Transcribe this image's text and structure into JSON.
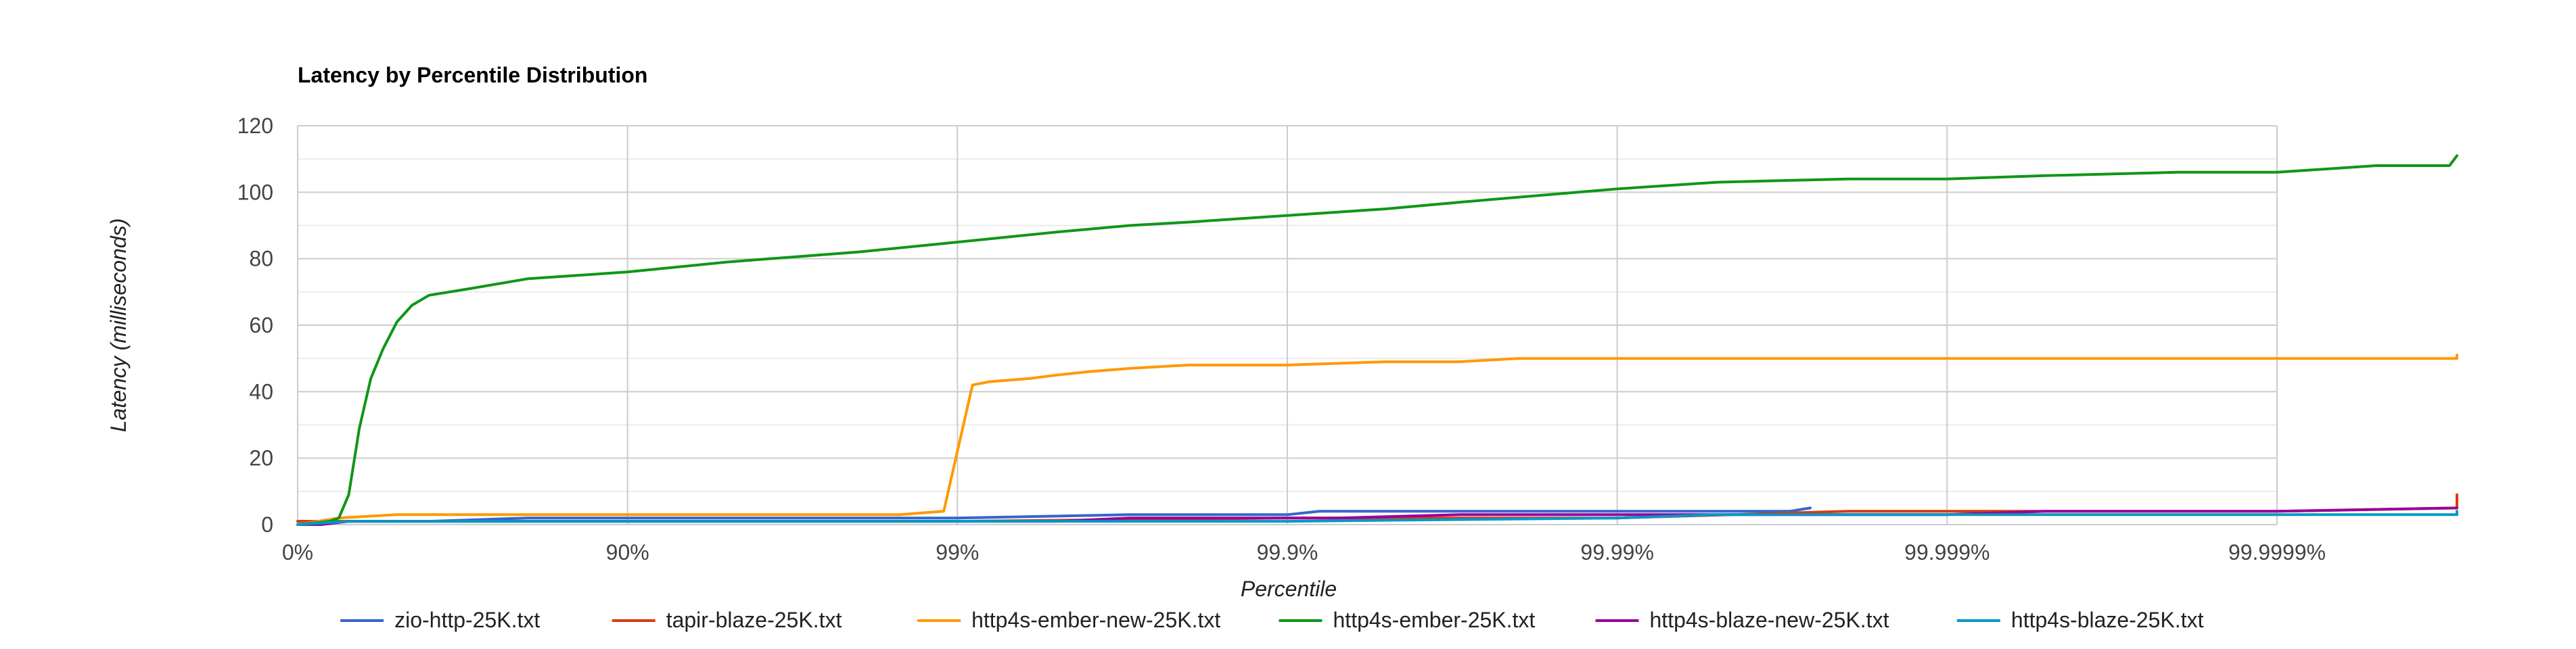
{
  "chart_data": {
    "type": "line",
    "title": "Latency by Percentile Distribution",
    "xlabel": "Percentile",
    "ylabel": "Latency (milliseconds)",
    "x_scale": "log-percentile",
    "xlim": [
      "0%",
      "99.99999%"
    ],
    "x_ticks": [
      "0%",
      "90%",
      "99%",
      "99.9%",
      "99.99%",
      "99.999%",
      "99.9999%"
    ],
    "ylim": [
      0,
      120
    ],
    "y_ticks": [
      0,
      20,
      40,
      60,
      80,
      100,
      120
    ],
    "grid": true,
    "legend_position": "bottom",
    "series": [
      {
        "name": "zio-http-25K.txt",
        "color": "#3366cc",
        "x": [
          "0%",
          "60%",
          "80%",
          "90%",
          "98%",
          "99%",
          "99.7%",
          "99.9%",
          "99.92%",
          "99.99%",
          "99.995%",
          "99.997%",
          "99.9974%"
        ],
        "values": [
          1,
          1,
          2,
          2,
          2,
          2,
          3,
          3,
          4,
          4,
          4,
          4,
          5
        ]
      },
      {
        "name": "tapir-blaze-25K.txt",
        "color": "#dc3912",
        "x": [
          "0%",
          "60%",
          "90%",
          "99%",
          "99.9%",
          "99.99%",
          "99.998%",
          "99.9999%",
          "99.99999%",
          "99.999992%"
        ],
        "values": [
          1,
          1,
          1,
          1,
          2,
          2,
          4,
          4,
          5,
          9
        ]
      },
      {
        "name": "http4s-ember-new-25K.txt",
        "color": "#ff9900",
        "x": [
          "0%",
          "25%",
          "50%",
          "90%",
          "98.5%",
          "98.9%",
          "99.1%",
          "99.2%",
          "99.4%",
          "99.5%",
          "99.6%",
          "99.7%",
          "99.8%",
          "99.85%",
          "99.9%",
          "99.95%",
          "99.97%",
          "99.98%",
          "99.99%",
          "99.999%",
          "99.9999%",
          "99.99999%",
          "99.999992%"
        ],
        "values": [
          0,
          2,
          3,
          3,
          3,
          4,
          42,
          43,
          44,
          45,
          46,
          47,
          48,
          48,
          48,
          49,
          49,
          50,
          50,
          50,
          50,
          50,
          51
        ]
      },
      {
        "name": "http4s-ember-25K.txt",
        "color": "#109618",
        "x": [
          "0%",
          "20%",
          "25%",
          "30%",
          "35%",
          "40%",
          "45%",
          "50%",
          "55%",
          "60%",
          "70%",
          "80%",
          "90%",
          "95%",
          "98%",
          "99%",
          "99.5%",
          "99.7%",
          "99.8%",
          "99.9%",
          "99.95%",
          "99.97%",
          "99.99%",
          "99.995%",
          "99.998%",
          "99.999%",
          "99.9995%",
          "99.9998%",
          "99.9999%",
          "99.99995%",
          "99.99997%",
          "99.99998%"
        ],
        "values": [
          0,
          1,
          2,
          9,
          29,
          44,
          53,
          61,
          66,
          69,
          71,
          74,
          76,
          79,
          82,
          85,
          88,
          90,
          91,
          93,
          95,
          97,
          101,
          103,
          104,
          104,
          105,
          106,
          106,
          108,
          108,
          111
        ]
      },
      {
        "name": "http4s-blaze-new-25K.txt",
        "color": "#990099",
        "x": [
          "0%",
          "15%",
          "30%",
          "99%",
          "99.1%",
          "99.5%",
          "99.7%",
          "99.9%",
          "99.93%",
          "99.97%",
          "99.99%",
          "99.995%",
          "99.999%",
          "99.9995%",
          "99.9999%",
          "99.99998%"
        ],
        "values": [
          0,
          0,
          1,
          1,
          1,
          1,
          2,
          2,
          2,
          3,
          3,
          3,
          3,
          4,
          4,
          5
        ]
      },
      {
        "name": "http4s-blaze-25K.txt",
        "color": "#0099c6",
        "x": [
          "0%",
          "30%",
          "90%",
          "99%",
          "99.9%",
          "99.99%",
          "99.995%",
          "99.999%",
          "99.99999%",
          "99.99999%",
          "99.999992%"
        ],
        "values": [
          0,
          1,
          1,
          1,
          1,
          2,
          3,
          3,
          3,
          3,
          4
        ]
      }
    ]
  }
}
